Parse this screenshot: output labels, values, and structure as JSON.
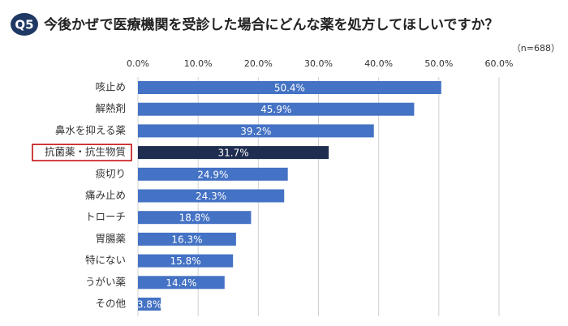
{
  "chart_data": {
    "type": "hbar",
    "question_label": "Q5",
    "title": "今後かぜで医療機関を受診した場合にどんな薬を処方してほしいですか？",
    "note": "（n=688）",
    "categories": [
      "咳止め",
      "解熱剤",
      "鼻水を抑える薬",
      "抗菌薬・抗生物質",
      "痰切り",
      "痛み止め",
      "トローチ",
      "胃腸薬",
      "特にない",
      "うがい薬",
      "その他"
    ],
    "values": [
      50.4,
      45.9,
      39.2,
      31.7,
      24.9,
      24.3,
      18.8,
      16.3,
      15.8,
      14.4,
      3.8
    ],
    "value_labels": [
      "50.4%",
      "45.9%",
      "39.2%",
      "31.7%",
      "24.9%",
      "24.3%",
      "18.8%",
      "16.3%",
      "15.8%",
      "14.4%",
      "3.8%"
    ],
    "colors": [
      "#4472c4",
      "#4472c4",
      "#4472c4",
      "#1f2d50",
      "#4472c4",
      "#4472c4",
      "#4472c4",
      "#4472c4",
      "#4472c4",
      "#4472c4",
      "#4472c4"
    ],
    "highlight_index": 3,
    "xlim": [
      0,
      60
    ],
    "xticks": [
      {
        "value": 0,
        "label": "0.0%"
      },
      {
        "value": 10,
        "label": "10.0%"
      },
      {
        "value": 20,
        "label": "20.0%"
      },
      {
        "value": 30,
        "label": "30.0%"
      },
      {
        "value": 40,
        "label": "40.0%"
      },
      {
        "value": 50,
        "label": "50.0%"
      },
      {
        "value": 60,
        "label": "60.0%"
      }
    ],
    "grid": true
  }
}
